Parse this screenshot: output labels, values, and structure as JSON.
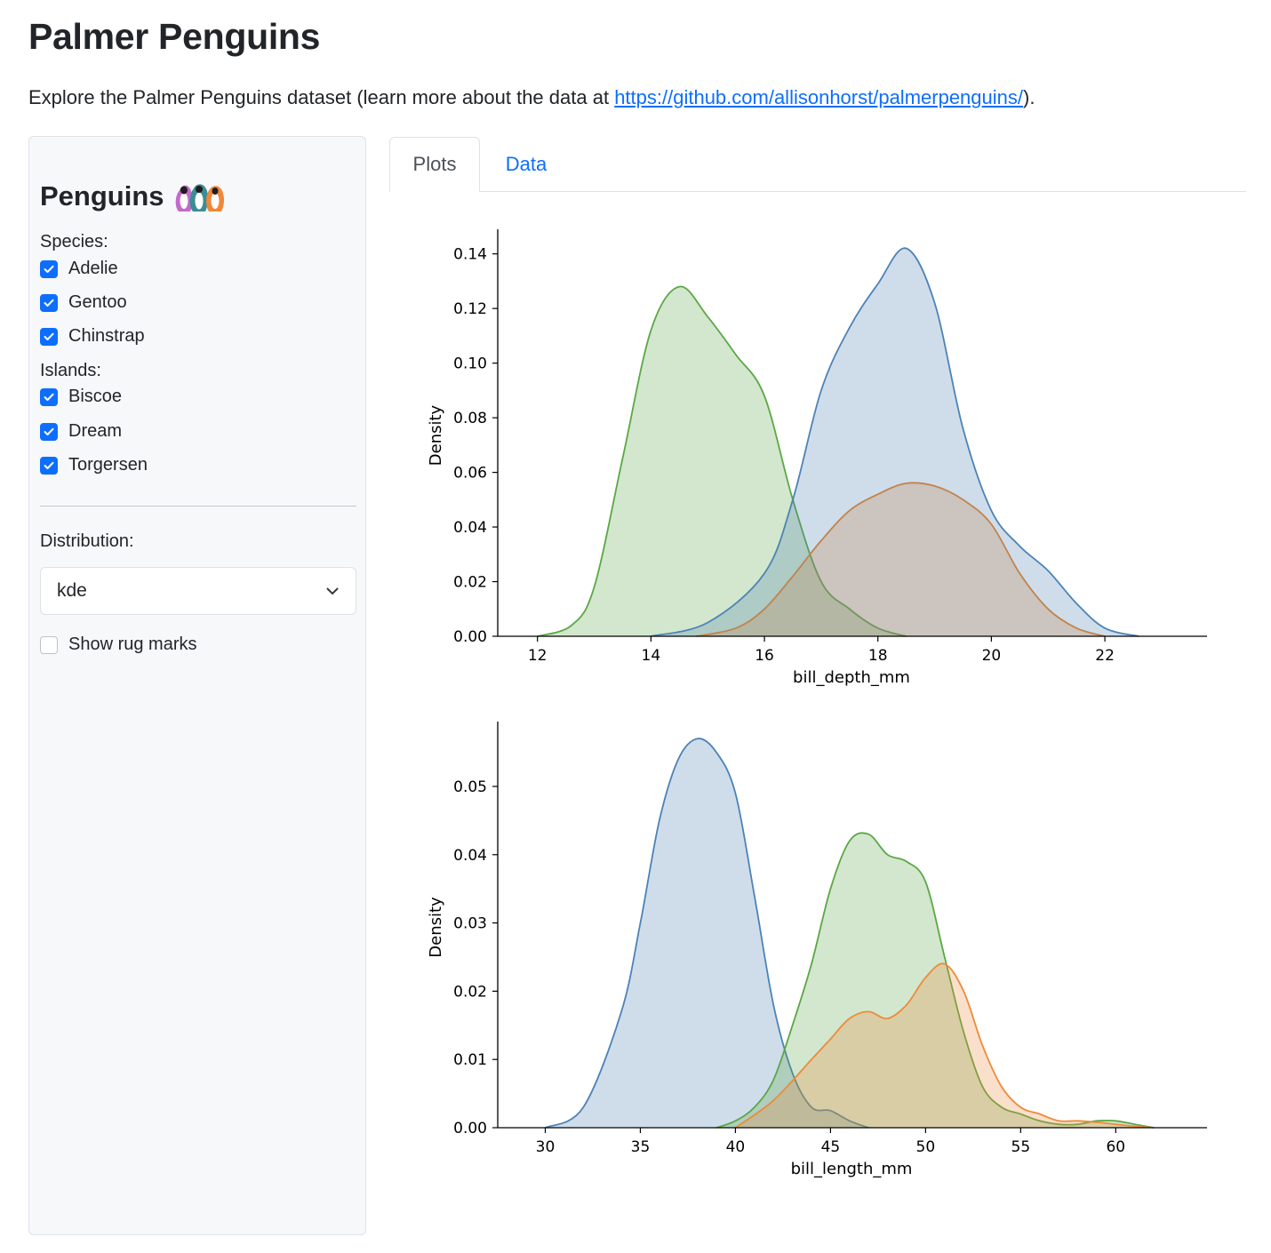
{
  "page": {
    "title": "Palmer Penguins",
    "intro_prefix": "Explore the Palmer Penguins dataset (learn more about the data at ",
    "intro_link": "https://github.com/allisonhorst/palmerpenguins/",
    "intro_suffix": ")."
  },
  "sidebar": {
    "title": "Penguins",
    "species_label": "Species:",
    "species": [
      {
        "label": "Adelie",
        "checked": true
      },
      {
        "label": "Gentoo",
        "checked": true
      },
      {
        "label": "Chinstrap",
        "checked": true
      }
    ],
    "islands_label": "Islands:",
    "islands": [
      {
        "label": "Biscoe",
        "checked": true
      },
      {
        "label": "Dream",
        "checked": true
      },
      {
        "label": "Torgersen",
        "checked": true
      }
    ],
    "distribution_label": "Distribution:",
    "distribution_value": "kde",
    "rug_label": "Show rug marks",
    "rug_checked": false
  },
  "tabs": [
    {
      "label": "Plots",
      "active": true
    },
    {
      "label": "Data",
      "active": false
    }
  ],
  "colors": {
    "blue": "#4c83b6",
    "green": "#5aa845",
    "orange": "#ee8a3a",
    "brown": "#c2834a",
    "accent": "#0d6efd"
  },
  "chart_data": [
    {
      "type": "area",
      "xlabel": "bill_depth_mm",
      "ylabel": "Density",
      "xlim": [
        11.3,
        23.8
      ],
      "ylim": [
        0,
        0.149
      ],
      "xticks": [
        12,
        14,
        16,
        18,
        20,
        22
      ],
      "yticks": [
        "0.00",
        "0.02",
        "0.04",
        "0.06",
        "0.08",
        "0.10",
        "0.12",
        "0.14"
      ],
      "grid": false,
      "series": [
        {
          "color": "#5aa845",
          "x": [
            12.0,
            12.6,
            13.0,
            13.5,
            14.0,
            14.5,
            15.0,
            15.5,
            16.0,
            16.5,
            17.0,
            17.5,
            18.0,
            18.5
          ],
          "y": [
            0.0,
            0.004,
            0.018,
            0.065,
            0.112,
            0.128,
            0.117,
            0.103,
            0.088,
            0.05,
            0.02,
            0.01,
            0.003,
            0.0
          ]
        },
        {
          "color": "#4c83b6",
          "x": [
            14.0,
            15.0,
            16.0,
            16.5,
            17.0,
            17.5,
            18.0,
            18.5,
            19.0,
            19.5,
            20.0,
            20.5,
            21.0,
            21.5,
            22.0,
            22.6
          ],
          "y": [
            0.0,
            0.005,
            0.023,
            0.05,
            0.09,
            0.113,
            0.129,
            0.142,
            0.122,
            0.076,
            0.046,
            0.033,
            0.024,
            0.012,
            0.003,
            0.0
          ]
        },
        {
          "color": "#c2834a",
          "x": [
            14.8,
            15.5,
            16.0,
            16.5,
            17.0,
            17.5,
            18.0,
            18.5,
            19.0,
            19.5,
            20.0,
            20.5,
            21.0,
            21.5,
            22.0
          ],
          "y": [
            0.0,
            0.003,
            0.01,
            0.022,
            0.035,
            0.046,
            0.052,
            0.056,
            0.055,
            0.05,
            0.041,
            0.023,
            0.01,
            0.003,
            0.0
          ]
        }
      ]
    },
    {
      "type": "area",
      "xlabel": "bill_length_mm",
      "ylabel": "Density",
      "xlim": [
        27.5,
        64.8
      ],
      "ylim": [
        0,
        0.0595
      ],
      "xticks": [
        30,
        35,
        40,
        45,
        50,
        55,
        60
      ],
      "yticks": [
        "0.00",
        "0.01",
        "0.02",
        "0.03",
        "0.04",
        "0.05"
      ],
      "grid": false,
      "series": [
        {
          "color": "#4c83b6",
          "x": [
            30,
            32,
            34,
            35,
            36,
            37,
            38,
            39,
            40,
            41,
            42,
            43,
            44,
            45,
            46,
            47
          ],
          "y": [
            0.0,
            0.003,
            0.017,
            0.03,
            0.045,
            0.054,
            0.057,
            0.055,
            0.049,
            0.034,
            0.018,
            0.008,
            0.003,
            0.0025,
            0.001,
            0.0
          ]
        },
        {
          "color": "#5aa845",
          "x": [
            39,
            40,
            41,
            42,
            43,
            44,
            45,
            46,
            47,
            48,
            49,
            50,
            51,
            52,
            53,
            54,
            55,
            56,
            57,
            58,
            59,
            60,
            61,
            62
          ],
          "y": [
            0.0,
            0.001,
            0.003,
            0.007,
            0.015,
            0.024,
            0.035,
            0.042,
            0.043,
            0.04,
            0.039,
            0.036,
            0.025,
            0.014,
            0.006,
            0.003,
            0.002,
            0.001,
            0.0005,
            0.0005,
            0.001,
            0.001,
            0.0005,
            0.0
          ]
        },
        {
          "color": "#ee8a3a",
          "x": [
            40,
            42,
            44,
            45,
            46,
            47,
            48,
            49,
            50,
            51,
            52,
            53,
            54,
            55,
            56,
            57,
            58,
            59,
            60,
            61,
            62
          ],
          "y": [
            0.0,
            0.004,
            0.01,
            0.013,
            0.016,
            0.017,
            0.016,
            0.018,
            0.022,
            0.024,
            0.02,
            0.012,
            0.006,
            0.003,
            0.002,
            0.001,
            0.001,
            0.0008,
            0.0005,
            0.0002,
            0.0
          ]
        }
      ]
    }
  ]
}
